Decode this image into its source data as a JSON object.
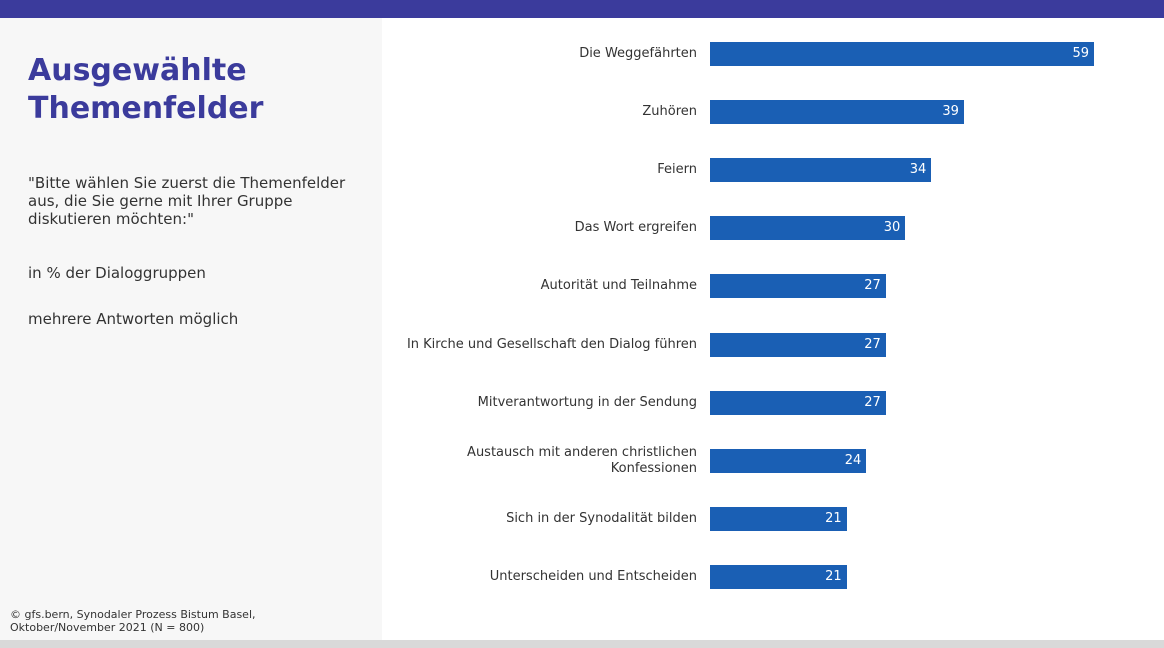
{
  "chart_data": {
    "type": "bar",
    "horizontal": true,
    "title": "Ausgewählte Themenfelder",
    "subtitle": "\"Bitte wählen Sie zuerst die Themenfelder aus, die Sie gerne mit Ihrer Gruppe diskutieren möchten:\"",
    "notes": [
      "in % der Dialoggruppen",
      "mehrere Antworten möglich"
    ],
    "source": "© gfs.bern, Synodaler Prozess Bistum Basel, Oktober/November 2021 (N = 800)",
    "categories": [
      "Die Weggefährten",
      "Zuhören",
      "Feiern",
      "Das Wort ergreifen",
      "Autorität und Teilnahme",
      "In Kirche und Gesellschaft den Dialog führen",
      "Mitverantwortung in der Sendung",
      "Austausch mit anderen christlichen Konfessionen",
      "Sich in der Synodalität bilden",
      "Unterscheiden und Entscheiden"
    ],
    "values": [
      59,
      39,
      34,
      30,
      27,
      27,
      27,
      24,
      21,
      21
    ],
    "color": "#1a5fb4"
  }
}
